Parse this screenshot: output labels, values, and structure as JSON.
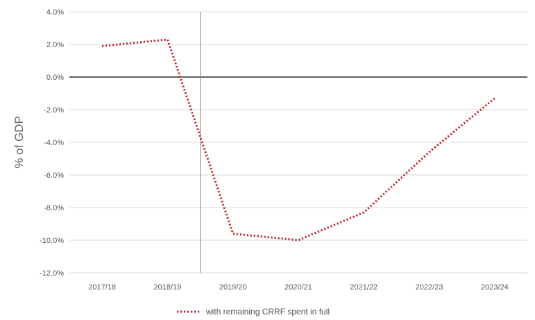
{
  "chart_data": {
    "type": "line",
    "title": "",
    "xlabel": "",
    "ylabel": "% of GDP",
    "categories": [
      "2017/18",
      "2018/19",
      "2019/20",
      "2020/21",
      "2021/22",
      "2022/23",
      "2023/24"
    ],
    "series": [
      {
        "name": "with remaining CRRF spent in full",
        "values": [
          1.9,
          2.3,
          -9.6,
          -10.0,
          -8.3,
          -4.6,
          -1.3
        ],
        "color": "#c0262d",
        "style": "dotted"
      }
    ],
    "ylim": [
      -12,
      4
    ],
    "yticks": [
      4,
      2,
      0,
      -2,
      -4,
      -6,
      -8,
      -10,
      -12
    ],
    "ytick_labels": [
      "4.0%",
      "2.0%",
      "0.0%",
      "-2.0%",
      "-4.0%",
      "-6.0%",
      "-8.0%",
      "-10.0%",
      "-12.0%"
    ],
    "vertical_marker_between": [
      "2018/19",
      "2019/20"
    ],
    "grid": "horizontal",
    "legend": "bottom-center",
    "colors": {
      "grid": "#d9d9d9",
      "zero_line": "#000000",
      "marker_line": "#888888"
    }
  }
}
